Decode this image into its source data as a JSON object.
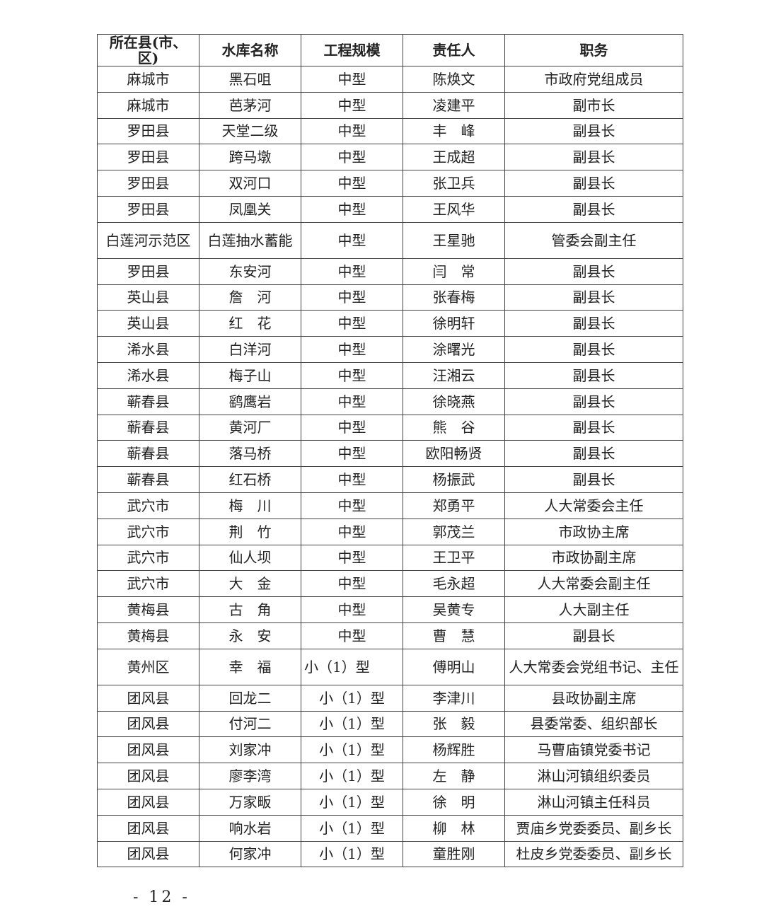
{
  "table": {
    "headers": [
      "所在县(市、区)",
      "水库名称",
      "工程规模",
      "责任人",
      "职务"
    ],
    "rows": [
      [
        "麻城市",
        "黑石咀",
        "中型",
        "陈焕文",
        "市政府党组成员"
      ],
      [
        "麻城市",
        "芭茅河",
        "中型",
        "凌建平",
        "副市长"
      ],
      [
        "罗田县",
        "天堂二级",
        "中型",
        "丰　峰",
        "副县长"
      ],
      [
        "罗田县",
        "跨马墩",
        "中型",
        "王成超",
        "副县长"
      ],
      [
        "罗田县",
        "双河口",
        "中型",
        "张卫兵",
        "副县长"
      ],
      [
        "罗田县",
        "凤凰关",
        "中型",
        "王风华",
        "副县长"
      ],
      [
        "白莲河示范区",
        "白莲抽水蓄能",
        "中型",
        "王星驰",
        "管委会副主任"
      ],
      [
        "罗田县",
        "东安河",
        "中型",
        "闫　常",
        "副县长"
      ],
      [
        "英山县",
        "詹　河",
        "中型",
        "张春梅",
        "副县长"
      ],
      [
        "英山县",
        "红　花",
        "中型",
        "徐明轩",
        "副县长"
      ],
      [
        "浠水县",
        "白洋河",
        "中型",
        "涂曙光",
        "副县长"
      ],
      [
        "浠水县",
        "梅子山",
        "中型",
        "汪湘云",
        "副县长"
      ],
      [
        "蕲春县",
        "鹞鹰岩",
        "中型",
        "徐晓燕",
        "副县长"
      ],
      [
        "蕲春县",
        "黄河厂",
        "中型",
        "熊　谷",
        "副县长"
      ],
      [
        "蕲春县",
        "落马桥",
        "中型",
        "欧阳畅贤",
        "副县长"
      ],
      [
        "蕲春县",
        "红石桥",
        "中型",
        "杨振武",
        "副县长"
      ],
      [
        "武穴市",
        "梅　川",
        "中型",
        "郑勇平",
        "人大常委会主任"
      ],
      [
        "武穴市",
        "荆　竹",
        "中型",
        "郭茂兰",
        "市政协主席"
      ],
      [
        "武穴市",
        "仙人坝",
        "中型",
        "王卫平",
        "市政协副主席"
      ],
      [
        "武穴市",
        "大　金",
        "中型",
        "毛永超",
        "人大常委会副主任"
      ],
      [
        "黄梅县",
        "古　角",
        "中型",
        "吴黄专",
        "人大副主任"
      ],
      [
        "黄梅县",
        "永　安",
        "中型",
        "曹　慧",
        "副县长"
      ],
      [
        "黄州区",
        "幸　福",
        "小（1）型",
        "傅明山",
        "人大常委会党组书记、主任"
      ],
      [
        "团风县",
        "回龙二",
        "小（1）型",
        "李津川",
        "县政协副主席"
      ],
      [
        "团风县",
        "付河二",
        "小（1）型",
        "张　毅",
        "县委常委、组织部长"
      ],
      [
        "团风县",
        "刘家冲",
        "小（1）型",
        "杨辉胜",
        "马曹庙镇党委书记"
      ],
      [
        "团风县",
        "廖李湾",
        "小（1）型",
        "左　静",
        "淋山河镇组织委员"
      ],
      [
        "团风县",
        "万家畈",
        "小（1）型",
        "徐　明",
        "淋山河镇主任科员"
      ],
      [
        "团风县",
        "响水岩",
        "小（1）型",
        "柳　林",
        "贾庙乡党委委员、副乡长"
      ],
      [
        "团风县",
        "何家冲",
        "小（1）型",
        "童胜刚",
        "杜皮乡党委委员、副乡长"
      ]
    ]
  },
  "footer": {
    "page_number": "- 12 -"
  }
}
